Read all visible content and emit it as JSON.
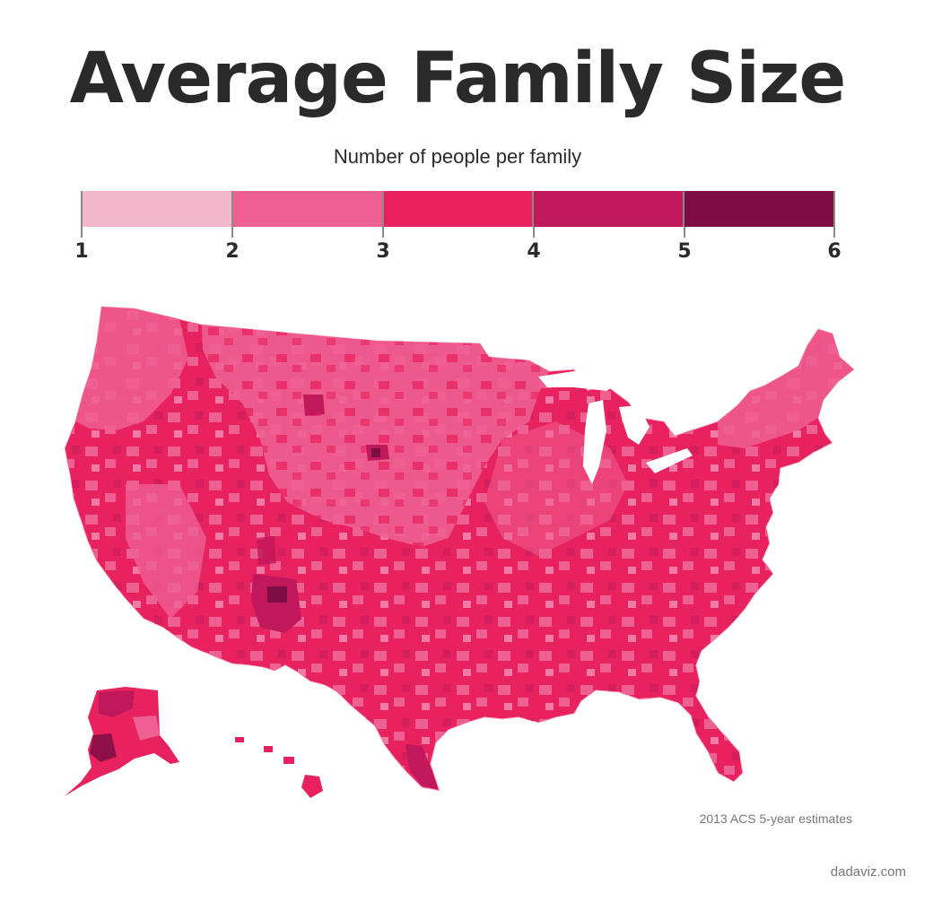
{
  "title": "Average Family Size",
  "subtitle": "Number of people per family",
  "legend": {
    "bins": [
      {
        "from": 1,
        "to": 2,
        "color": "#f4b7cc"
      },
      {
        "from": 2,
        "to": 3,
        "color": "#ee5f92"
      },
      {
        "from": 3,
        "to": 4,
        "color": "#e8225f"
      },
      {
        "from": 4,
        "to": 5,
        "color": "#c0185a"
      },
      {
        "from": 5,
        "to": 6,
        "color": "#7d0d44"
      }
    ],
    "labels": [
      "1",
      "2",
      "3",
      "4",
      "5",
      "6"
    ]
  },
  "map": {
    "region": "United States (counties)",
    "base_color": "#e8225f",
    "secondary_color": "#ee5f92",
    "dark_color": "#c0185a",
    "darkest_color": "#7d0d44"
  },
  "source": "2013 ACS 5-year estimates",
  "credit": "dadaviz.com"
}
